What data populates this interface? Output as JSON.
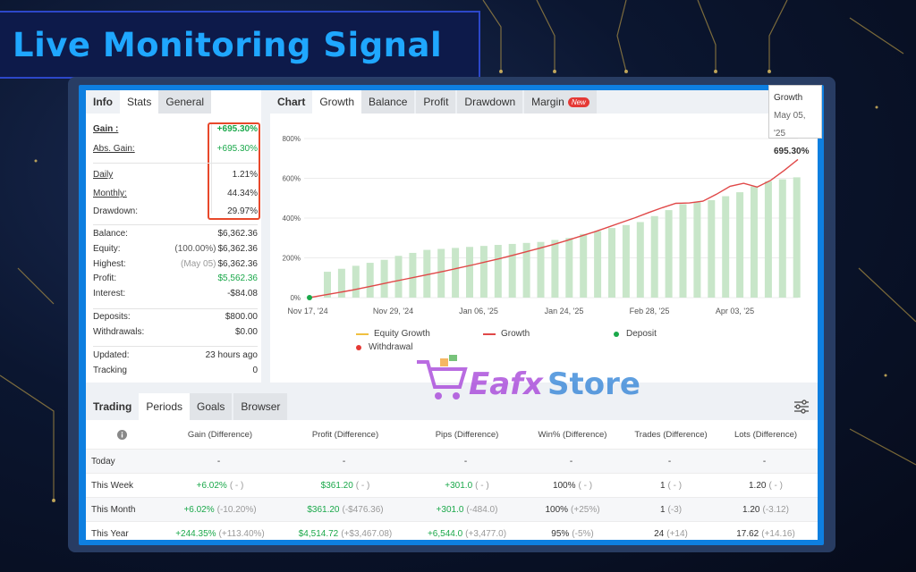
{
  "banner": {
    "title": "Live Monitoring Signal"
  },
  "info_panel": {
    "tabs": [
      "Info",
      "Stats",
      "General"
    ],
    "rows": {
      "gain": {
        "label": "Gain :",
        "value": "+695.30%"
      },
      "abs_gain": {
        "label": "Abs. Gain:",
        "value": "+695.30%"
      },
      "daily": {
        "label": "Daily",
        "value": "1.21%"
      },
      "monthly": {
        "label": "Monthly:",
        "value": "44.34%"
      },
      "drawdown": {
        "label": "Drawdown:",
        "value": "29.97%"
      },
      "balance": {
        "label": "Balance:",
        "value": "$6,362.36"
      },
      "equity": {
        "label": "Equity:",
        "sub": "(100.00%)",
        "value": "$6,362.36"
      },
      "highest": {
        "label": "Highest:",
        "sub": "(May 05)",
        "value": "$6,362.36"
      },
      "profit": {
        "label": "Profit:",
        "value": "$5,562.36"
      },
      "interest": {
        "label": "Interest:",
        "value": "-$84.08"
      },
      "deposits": {
        "label": "Deposits:",
        "value": "$800.00"
      },
      "withdrawals": {
        "label": "Withdrawals:",
        "value": "$0.00"
      },
      "updated": {
        "label": "Updated:",
        "value": "23 hours ago"
      },
      "tracking": {
        "label": "Tracking",
        "value": "0"
      }
    }
  },
  "chart_panel": {
    "tabs": [
      "Chart",
      "Growth",
      "Balance",
      "Profit",
      "Drawdown",
      "Margin"
    ],
    "new_badge": "New",
    "tooltip": {
      "series": "Growth",
      "date": "May 05, '25",
      "value": "695.30%"
    },
    "legend": [
      "Equity Growth",
      "Growth",
      "Deposit",
      "Withdrawal"
    ]
  },
  "chart_data": {
    "type": "line",
    "x_ticks": [
      "Nov 17, '24",
      "Nov 29, '24",
      "Jan 06, '25",
      "Jan 24, '25",
      "Feb 28, '25",
      "Apr 03, '25"
    ],
    "y_ticks": [
      "0%",
      "200%",
      "400%",
      "600%",
      "800%"
    ],
    "ylim": [
      0,
      800
    ],
    "series": [
      {
        "name": "Growth",
        "color": "#e04848",
        "type": "line",
        "values": [
          0,
          12,
          24,
          36,
          50,
          64,
          78,
          92,
          106,
          120,
          134,
          149,
          164,
          180,
          196,
          213,
          231,
          249,
          268,
          288,
          309,
          331,
          354,
          378,
          402,
          428,
          452,
          474,
          476,
          485,
          520,
          560,
          575,
          556,
          590,
          640,
          695
        ]
      },
      {
        "name": "Equity Growth",
        "color": "#c8e6c9",
        "type": "bar",
        "values": [
          130,
          145,
          160,
          175,
          190,
          210,
          225,
          240,
          245,
          250,
          255,
          260,
          265,
          270,
          275,
          280,
          290,
          300,
          320,
          335,
          350,
          365,
          380,
          410,
          440,
          470,
          480,
          490,
          510,
          530,
          560,
          585,
          595,
          605
        ]
      }
    ],
    "markers": {
      "deposit_color": "#1aa84a",
      "withdrawal_color": "#e53935"
    }
  },
  "table_panel": {
    "tabs": [
      "Trading",
      "Periods",
      "Goals",
      "Browser"
    ],
    "headers": [
      "Gain (Difference)",
      "Profit (Difference)",
      "Pips (Difference)",
      "Win% (Difference)",
      "Trades (Difference)",
      "Lots (Difference)"
    ],
    "rows": [
      {
        "period": "Today",
        "cells": [
          [
            "-",
            ""
          ],
          [
            "-",
            ""
          ],
          [
            "-",
            ""
          ],
          [
            "-",
            ""
          ],
          [
            "-",
            ""
          ],
          [
            "-",
            ""
          ]
        ]
      },
      {
        "period": "This Week",
        "cells": [
          [
            "+6.02%",
            "( - )"
          ],
          [
            "$361.20",
            "( - )"
          ],
          [
            "+301.0",
            "( - )"
          ],
          [
            "100%",
            "( - )"
          ],
          [
            "1",
            "( - )"
          ],
          [
            "1.20",
            "( - )"
          ]
        ]
      },
      {
        "period": "This Month",
        "cells": [
          [
            "+6.02%",
            "(-10.20%)"
          ],
          [
            "$361.20",
            "(-$476.36)"
          ],
          [
            "+301.0",
            "(-484.0)"
          ],
          [
            "100%",
            "(+25%)"
          ],
          [
            "1",
            "(-3)"
          ],
          [
            "1.20",
            "(-3.12)"
          ]
        ]
      },
      {
        "period": "This Year",
        "cells": [
          [
            "+244.35%",
            "(+113.40%)"
          ],
          [
            "$4,514.72",
            "(+$3,467.08)"
          ],
          [
            "+6,544.0",
            "(+3,477.0)"
          ],
          [
            "95%",
            "(-5%)"
          ],
          [
            "24",
            "(+14)"
          ],
          [
            "17.62",
            "(+14.16)"
          ]
        ]
      }
    ]
  },
  "watermark": {
    "brand": "Eafx",
    "suffix": "Store"
  }
}
